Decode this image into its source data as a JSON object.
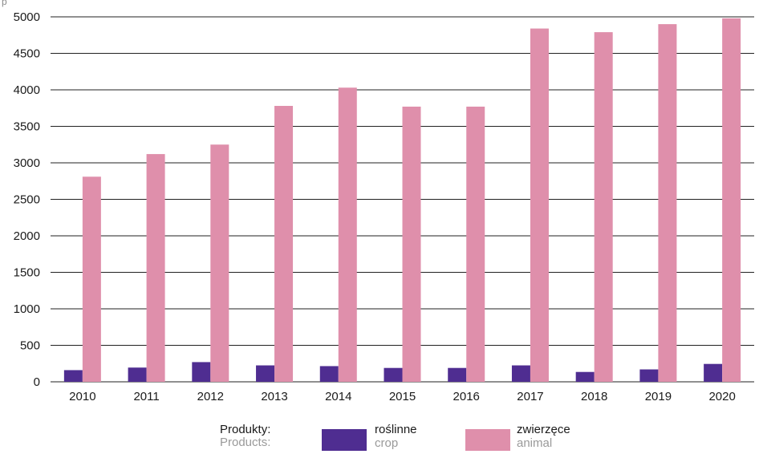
{
  "unit_label": "p",
  "legend": {
    "title_pl": "Produkty:",
    "title_en": "Products:",
    "items": [
      {
        "label_pl": "roślinne",
        "label_en": "crop",
        "color": "#4f2d91"
      },
      {
        "label_pl": "zwierzęce",
        "label_en": "animal",
        "color": "#df8fab"
      }
    ]
  },
  "chart_data": {
    "type": "bar",
    "title": "",
    "xlabel": "",
    "ylabel": "",
    "categories": [
      "2010",
      "2011",
      "2012",
      "2013",
      "2014",
      "2015",
      "2016",
      "2017",
      "2018",
      "2019",
      "2020"
    ],
    "ylim": [
      0,
      5000
    ],
    "yticks": [
      0,
      500,
      1000,
      1500,
      2000,
      2500,
      3000,
      3500,
      4000,
      4500,
      5000
    ],
    "grid": true,
    "legend_position": "bottom",
    "series": [
      {
        "name": "roślinne / crop",
        "color": "#4f2d91",
        "values": [
          160,
          195,
          270,
          225,
          215,
          190,
          190,
          225,
          135,
          170,
          245
        ]
      },
      {
        "name": "zwierzęce / animal",
        "color": "#df8fab",
        "values": [
          2810,
          3120,
          3250,
          3780,
          4030,
          3770,
          3770,
          4840,
          4790,
          4900,
          4980
        ]
      }
    ]
  }
}
